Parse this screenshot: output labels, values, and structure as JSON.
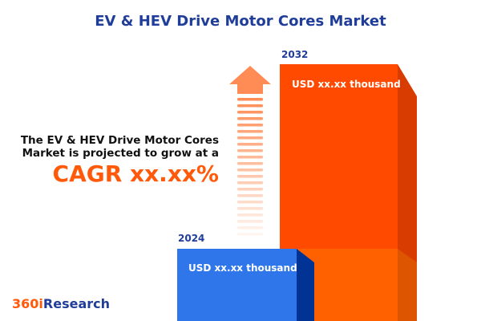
{
  "title": "EV & HEV Drive Motor Cores Market",
  "description_line1": "The EV & HEV Drive Motor Cores",
  "description_line2": "Market is projected to grow at a",
  "cagr_text": "CAGR xx.xx%",
  "logo": {
    "part1": "360i",
    "part2": "Research"
  },
  "colors": {
    "accent": "#ff5a0a",
    "bar_2024": "#2f76ea",
    "bar_2032": "#ff4a00",
    "title": "#1f3d99"
  },
  "chart_data": {
    "type": "bar",
    "categories": [
      "2024",
      "2032"
    ],
    "value_labels": [
      "USD xx.xx thousand",
      "USD xx.xx thousand"
    ],
    "title": "EV & HEV Drive Motor Cores Market",
    "annotation": "CAGR xx.xx%"
  }
}
